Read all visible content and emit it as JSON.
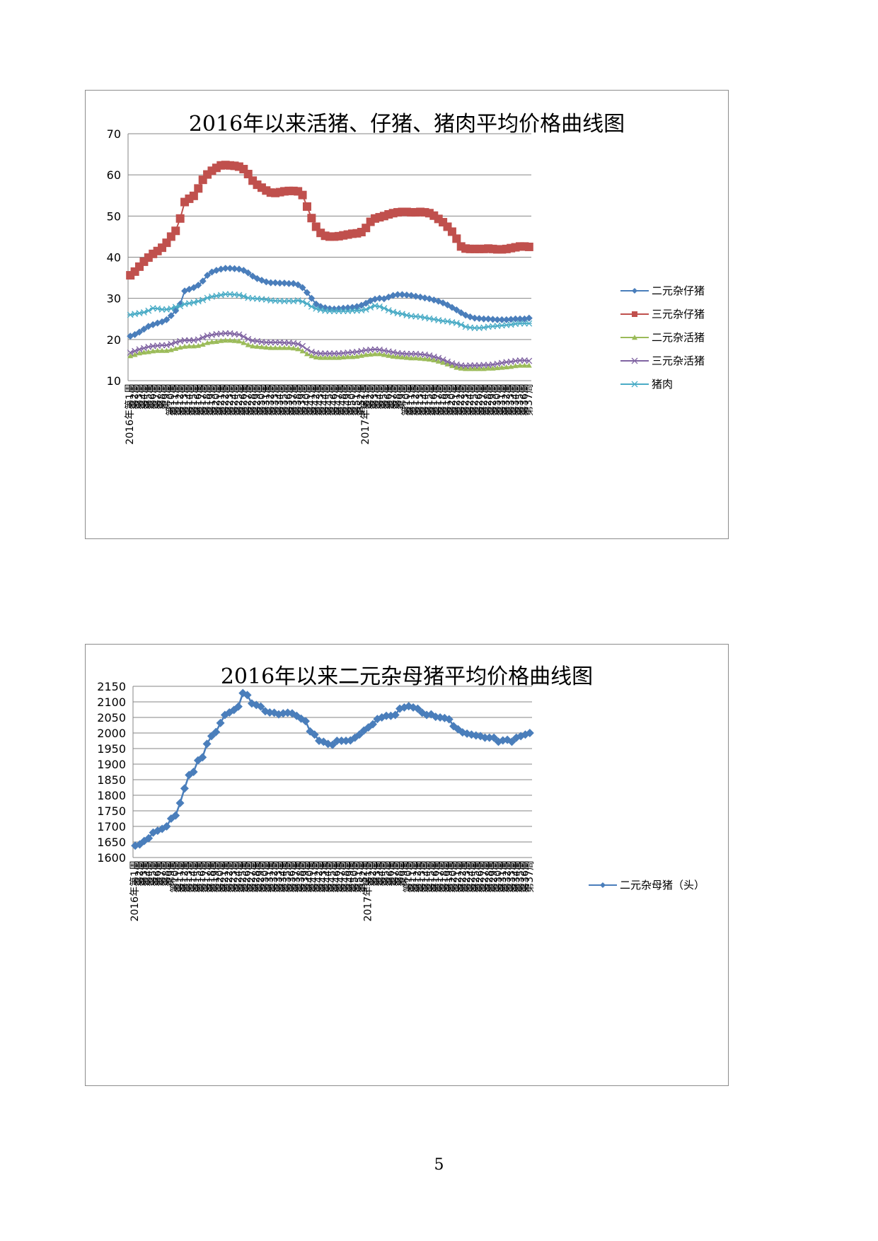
{
  "page_number": "5",
  "chart_data": [
    {
      "type": "line",
      "title": "2016年以来活猪、仔猪、猪肉平均价格曲线图",
      "xlabel": "",
      "ylabel": "",
      "ylim": [
        10,
        70
      ],
      "yticks": [
        10,
        20,
        30,
        40,
        50,
        60,
        70
      ],
      "grid": true,
      "legend_position": "right",
      "x_group_labels": [
        "2016年",
        "2017年"
      ],
      "x": [
        "第1周",
        "第2周",
        "第3周",
        "第4周",
        "第5周",
        "第6周",
        "第7周",
        "第8周",
        "第9周",
        "第10周",
        "第11周",
        "第12周",
        "第13周",
        "第14周",
        "第15周",
        "第16周",
        "第17周",
        "第18周",
        "第19周",
        "第20周",
        "第21周",
        "第22周",
        "第23周",
        "第24周",
        "第25周",
        "第26周",
        "第27周",
        "第28周",
        "第29周",
        "第30周",
        "第31周",
        "第32周",
        "第33周",
        "第34周",
        "第35周",
        "第36周",
        "第37周",
        "第38周",
        "第39周",
        "第40周",
        "第41周",
        "第42周",
        "第43周",
        "第44周",
        "第45周",
        "第46周",
        "第47周",
        "第48周",
        "第49周",
        "第50周",
        "第51周",
        "第52周",
        "第1周",
        "第2周",
        "第3周",
        "第4周",
        "第5周",
        "第6周",
        "第7周",
        "第8周",
        "第9周",
        "第10周",
        "第11周",
        "第12周",
        "第13周",
        "第14周",
        "第15周",
        "第16周",
        "第17周",
        "第18周",
        "第19周",
        "第20周",
        "第21周",
        "第22周",
        "第23周",
        "第24周",
        "第25周",
        "第26周",
        "第27周",
        "第28周",
        "第29周",
        "第30周",
        "第31周",
        "第32周",
        "第33周",
        "第34周",
        "第35周",
        "第36周",
        "第37周"
      ],
      "series": [
        {
          "name": "二元杂仔猪",
          "color": "#4a7ebb",
          "marker": "diamond",
          "values": [
            20.8,
            21.2,
            21.8,
            22.5,
            23.2,
            23.6,
            24.0,
            24.3,
            24.8,
            25.8,
            27.0,
            28.6,
            31.8,
            32.2,
            32.6,
            33.2,
            34.2,
            35.6,
            36.4,
            36.8,
            37.1,
            37.3,
            37.3,
            37.2,
            37.1,
            36.8,
            36.2,
            35.4,
            34.8,
            34.4,
            34.0,
            33.8,
            33.8,
            33.7,
            33.7,
            33.6,
            33.6,
            33.3,
            32.6,
            31.4,
            30.0,
            28.6,
            28.0,
            27.7,
            27.5,
            27.4,
            27.5,
            27.6,
            27.7,
            27.8,
            28.0,
            28.3,
            28.8,
            29.4,
            29.8,
            30.0,
            29.9,
            30.3,
            30.7,
            30.9,
            30.9,
            30.8,
            30.7,
            30.5,
            30.3,
            30.1,
            29.9,
            29.6,
            29.3,
            28.9,
            28.4,
            27.8,
            27.2,
            26.5,
            25.9,
            25.5,
            25.2,
            25.1,
            25.0,
            25.0,
            24.9,
            24.8,
            24.8,
            24.8,
            24.9,
            25.0,
            25.0,
            25.0,
            25.2
          ]
        },
        {
          "name": "三元杂仔猪",
          "color": "#c0504d",
          "marker": "square",
          "values": [
            35.6,
            36.5,
            37.7,
            38.9,
            39.9,
            40.8,
            41.5,
            42.3,
            43.5,
            45.0,
            46.4,
            49.4,
            53.4,
            54.2,
            54.9,
            56.7,
            58.8,
            60.1,
            61.0,
            61.7,
            62.3,
            62.4,
            62.3,
            62.2,
            62.0,
            61.4,
            60.2,
            58.6,
            57.6,
            56.9,
            56.2,
            55.7,
            55.6,
            55.8,
            56.0,
            56.1,
            56.1,
            56.0,
            55.1,
            52.3,
            49.5,
            47.4,
            45.9,
            45.2,
            45.0,
            45.0,
            45.1,
            45.3,
            45.5,
            45.7,
            45.8,
            46.1,
            47.1,
            48.6,
            49.4,
            49.7,
            50.0,
            50.4,
            50.7,
            50.9,
            51.0,
            51.0,
            50.9,
            50.9,
            51.0,
            50.9,
            50.7,
            50.1,
            49.3,
            48.5,
            47.4,
            46.2,
            44.5,
            42.6,
            42.1,
            42.0,
            42.0,
            42.0,
            42.0,
            42.1,
            42.0,
            41.9,
            41.9,
            42.0,
            42.2,
            42.4,
            42.6,
            42.6,
            42.5
          ]
        },
        {
          "name": "二元杂活猪",
          "color": "#9bbb59",
          "marker": "triangle",
          "values": [
            16.0,
            16.3,
            16.7,
            16.9,
            17.0,
            17.2,
            17.3,
            17.3,
            17.3,
            17.5,
            17.8,
            18.1,
            18.3,
            18.4,
            18.4,
            18.5,
            18.8,
            19.2,
            19.4,
            19.5,
            19.7,
            19.8,
            19.8,
            19.7,
            19.6,
            19.2,
            18.7,
            18.4,
            18.3,
            18.2,
            18.1,
            18.0,
            18.0,
            18.0,
            18.0,
            18.0,
            17.9,
            17.7,
            17.2,
            16.5,
            16.0,
            15.7,
            15.6,
            15.6,
            15.6,
            15.6,
            15.6,
            15.7,
            15.8,
            15.8,
            15.9,
            16.1,
            16.3,
            16.4,
            16.5,
            16.5,
            16.3,
            16.1,
            15.9,
            15.8,
            15.7,
            15.6,
            15.5,
            15.5,
            15.4,
            15.3,
            15.2,
            15.0,
            14.7,
            14.4,
            14.0,
            13.6,
            13.2,
            13.0,
            12.9,
            12.9,
            12.9,
            12.9,
            12.9,
            13.0,
            13.0,
            13.1,
            13.2,
            13.3,
            13.4,
            13.6,
            13.7,
            13.7,
            13.7
          ]
        },
        {
          "name": "三元杂活猪",
          "color": "#8064a2",
          "marker": "x",
          "values": [
            16.8,
            17.2,
            17.6,
            17.9,
            18.2,
            18.4,
            18.5,
            18.6,
            18.6,
            18.9,
            19.3,
            19.6,
            19.8,
            19.8,
            19.8,
            20.0,
            20.5,
            20.9,
            21.1,
            21.3,
            21.4,
            21.5,
            21.5,
            21.3,
            21.2,
            20.7,
            20.1,
            19.7,
            19.6,
            19.4,
            19.3,
            19.3,
            19.3,
            19.3,
            19.2,
            19.2,
            19.1,
            18.9,
            18.4,
            17.6,
            17.0,
            16.7,
            16.6,
            16.6,
            16.6,
            16.6,
            16.6,
            16.7,
            16.8,
            16.9,
            17.0,
            17.2,
            17.4,
            17.5,
            17.6,
            17.5,
            17.3,
            17.1,
            16.9,
            16.7,
            16.6,
            16.5,
            16.5,
            16.5,
            16.4,
            16.3,
            16.1,
            15.8,
            15.5,
            15.1,
            14.6,
            14.2,
            13.9,
            13.7,
            13.6,
            13.7,
            13.7,
            13.7,
            13.8,
            13.8,
            13.9,
            14.1,
            14.3,
            14.5,
            14.6,
            14.8,
            14.9,
            14.9,
            14.8
          ]
        },
        {
          "name": "猪肉",
          "color": "#4bacc6",
          "marker": "star",
          "values": [
            26.0,
            26.2,
            26.4,
            26.6,
            27.0,
            27.6,
            27.5,
            27.3,
            27.3,
            27.5,
            27.9,
            28.1,
            28.6,
            28.8,
            29.0,
            29.3,
            29.6,
            30.1,
            30.4,
            30.6,
            30.8,
            31.0,
            31.0,
            30.9,
            30.8,
            30.5,
            30.1,
            30.0,
            29.9,
            29.8,
            29.7,
            29.5,
            29.4,
            29.4,
            29.3,
            29.4,
            29.3,
            29.5,
            29.2,
            28.7,
            28.0,
            27.5,
            27.2,
            27.0,
            26.9,
            26.9,
            26.9,
            26.9,
            26.9,
            27.0,
            27.0,
            27.1,
            27.3,
            27.8,
            28.2,
            28.0,
            27.6,
            27.1,
            26.7,
            26.4,
            26.2,
            25.9,
            25.7,
            25.6,
            25.5,
            25.3,
            25.1,
            24.9,
            24.7,
            24.5,
            24.4,
            24.2,
            24.0,
            23.6,
            23.1,
            22.9,
            22.8,
            22.8,
            22.9,
            23.1,
            23.2,
            23.3,
            23.4,
            23.5,
            23.6,
            23.8,
            23.9,
            23.9,
            23.9
          ]
        }
      ]
    },
    {
      "type": "line",
      "title": "2016年以来二元杂母猪平均价格曲线图",
      "xlabel": "",
      "ylabel": "",
      "ylim": [
        1600,
        2150
      ],
      "yticks": [
        1600,
        1650,
        1700,
        1750,
        1800,
        1850,
        1900,
        1950,
        2000,
        2050,
        2100,
        2150
      ],
      "grid": true,
      "legend_position": "right",
      "x_group_labels": [
        "2016年",
        "2017年"
      ],
      "x": [
        "第1周",
        "第2周",
        "第3周",
        "第4周",
        "第5周",
        "第6周",
        "第7周",
        "第8周",
        "第9周",
        "第10周",
        "第11周",
        "第12周",
        "第13周",
        "第14周",
        "第15周",
        "第16周",
        "第17周",
        "第18周",
        "第19周",
        "第20周",
        "第21周",
        "第22周",
        "第23周",
        "第24周",
        "第25周",
        "第26周",
        "第27周",
        "第28周",
        "第29周",
        "第30周",
        "第31周",
        "第32周",
        "第33周",
        "第34周",
        "第35周",
        "第36周",
        "第37周",
        "第38周",
        "第39周",
        "第40周",
        "第41周",
        "第42周",
        "第43周",
        "第44周",
        "第45周",
        "第46周",
        "第47周",
        "第48周",
        "第49周",
        "第50周",
        "第51周",
        "第52周",
        "第1周",
        "第2周",
        "第3周",
        "第4周",
        "第5周",
        "第6周",
        "第7周",
        "第8周",
        "第9周",
        "第10周",
        "第11周",
        "第12周",
        "第13周",
        "第14周",
        "第15周",
        "第16周",
        "第17周",
        "第18周",
        "第19周",
        "第20周",
        "第21周",
        "第22周",
        "第23周",
        "第24周",
        "第25周",
        "第26周",
        "第27周",
        "第28周",
        "第29周",
        "第30周",
        "第31周",
        "第32周",
        "第33周",
        "第34周",
        "第35周",
        "第36周",
        "第37周"
      ],
      "series": [
        {
          "name": "二元杂母猪（头）",
          "color": "#4a7ebb",
          "marker": "diamond",
          "values": [
            1638,
            1642,
            1653,
            1662,
            1680,
            1686,
            1692,
            1700,
            1725,
            1735,
            1775,
            1822,
            1865,
            1875,
            1912,
            1922,
            1965,
            1990,
            2003,
            2032,
            2058,
            2066,
            2074,
            2085,
            2128,
            2122,
            2095,
            2090,
            2085,
            2070,
            2066,
            2065,
            2060,
            2063,
            2065,
            2063,
            2055,
            2046,
            2038,
            2005,
            1995,
            1975,
            1972,
            1965,
            1962,
            1975,
            1975,
            1975,
            1976,
            1985,
            1995,
            2008,
            2018,
            2028,
            2045,
            2050,
            2055,
            2055,
            2058,
            2078,
            2082,
            2086,
            2082,
            2078,
            2065,
            2058,
            2060,
            2052,
            2050,
            2048,
            2044,
            2022,
            2012,
            2002,
            1998,
            1995,
            1992,
            1990,
            1985,
            1985,
            1985,
            1972,
            1976,
            1978,
            1972,
            1985,
            1990,
            1995,
            2000
          ]
        }
      ]
    }
  ]
}
